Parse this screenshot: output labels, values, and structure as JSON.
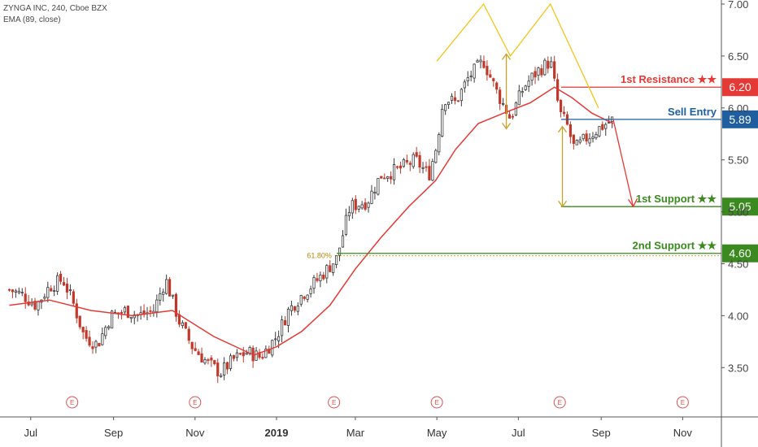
{
  "legend": {
    "symbol_line": "ZYNGA INC, 240, Cboe BZX",
    "indicator_line": "EMA (89, close)"
  },
  "colors": {
    "up_candle": "#3a3a3a",
    "down_candle": "#c0392b",
    "ema": "#e53935",
    "resistance": "#e53935",
    "entry": "#1f5fa0",
    "support": "#3a8a1f",
    "fib": "#b8860b",
    "pattern": "#f5c518",
    "arrow_gold": "#c9a227",
    "event": "#e05050"
  },
  "chart_data": {
    "type": "candlestick",
    "y_axis": {
      "ylim": [
        3.0,
        7.1
      ],
      "ticks": [
        "7.00",
        "6.50",
        "6.00",
        "5.50",
        "5.00",
        "4.50",
        "4.00",
        "3.50"
      ]
    },
    "x_axis": {
      "ticks": [
        "Jul",
        "Sep",
        "Nov",
        "2019",
        "Mar",
        "May",
        "Jul",
        "Sep",
        "Nov"
      ]
    },
    "close_path": [
      [
        "2018-06-15",
        4.25
      ],
      [
        "2018-06-25",
        4.2
      ],
      [
        "2018-07-05",
        4.1
      ],
      [
        "2018-07-15",
        4.28
      ],
      [
        "2018-07-25",
        4.35
      ],
      [
        "2018-08-01",
        4.15
      ],
      [
        "2018-08-10",
        3.8
      ],
      [
        "2018-08-20",
        3.72
      ],
      [
        "2018-08-30",
        4.0
      ],
      [
        "2018-09-10",
        4.05
      ],
      [
        "2018-09-20",
        4.0
      ],
      [
        "2018-10-01",
        4.05
      ],
      [
        "2018-10-10",
        4.35
      ],
      [
        "2018-10-20",
        3.95
      ],
      [
        "2018-10-30",
        3.7
      ],
      [
        "2018-11-10",
        3.55
      ],
      [
        "2018-11-20",
        3.45
      ],
      [
        "2018-11-30",
        3.58
      ],
      [
        "2018-12-10",
        3.65
      ],
      [
        "2018-12-20",
        3.6
      ],
      [
        "2019-01-01",
        3.8
      ],
      [
        "2019-01-10",
        4.05
      ],
      [
        "2019-01-20",
        4.2
      ],
      [
        "2019-02-01",
        4.35
      ],
      [
        "2019-02-15",
        4.55
      ],
      [
        "2019-02-25",
        5.05
      ],
      [
        "2019-03-10",
        5.1
      ],
      [
        "2019-03-20",
        5.35
      ],
      [
        "2019-04-01",
        5.4
      ],
      [
        "2019-04-15",
        5.5
      ],
      [
        "2019-04-25",
        5.35
      ],
      [
        "2019-05-01",
        5.65
      ],
      [
        "2019-05-06",
        6.1
      ],
      [
        "2019-05-15",
        6.05
      ],
      [
        "2019-05-25",
        6.3
      ],
      [
        "2019-06-05",
        6.45
      ],
      [
        "2019-06-15",
        6.15
      ],
      [
        "2019-06-25",
        5.9
      ],
      [
        "2019-07-05",
        6.2
      ],
      [
        "2019-07-15",
        6.35
      ],
      [
        "2019-07-25",
        6.45
      ],
      [
        "2019-08-01",
        5.95
      ],
      [
        "2019-08-06",
        5.85
      ],
      [
        "2019-08-12",
        5.6
      ],
      [
        "2019-08-20",
        5.7
      ],
      [
        "2019-08-30",
        5.8
      ],
      [
        "2019-09-10",
        5.89
      ]
    ],
    "ema_path": [
      [
        "2018-06-15",
        4.1
      ],
      [
        "2018-07-15",
        4.15
      ],
      [
        "2018-08-15",
        4.05
      ],
      [
        "2018-09-15",
        4.0
      ],
      [
        "2018-10-15",
        4.05
      ],
      [
        "2018-11-15",
        3.8
      ],
      [
        "2018-12-15",
        3.62
      ],
      [
        "2019-01-01",
        3.7
      ],
      [
        "2019-01-20",
        3.85
      ],
      [
        "2019-02-10",
        4.1
      ],
      [
        "2019-03-01",
        4.45
      ],
      [
        "2019-03-20",
        4.75
      ],
      [
        "2019-04-10",
        5.05
      ],
      [
        "2019-04-30",
        5.3
      ],
      [
        "2019-05-15",
        5.6
      ],
      [
        "2019-06-01",
        5.85
      ],
      [
        "2019-06-20",
        5.95
      ],
      [
        "2019-07-10",
        6.05
      ],
      [
        "2019-07-28",
        6.2
      ],
      [
        "2019-08-10",
        6.1
      ],
      [
        "2019-08-25",
        5.95
      ],
      [
        "2019-09-10",
        5.85
      ]
    ],
    "levels": [
      {
        "name": "1st Resistance",
        "stars": "★★",
        "value": 6.2,
        "badge": "6.20",
        "role": "resistance",
        "from": "2019-08-02"
      },
      {
        "name": "Sell Entry",
        "stars": "",
        "value": 5.89,
        "badge": "5.89",
        "role": "entry",
        "from": "2019-08-02"
      },
      {
        "name": "1st Support",
        "stars": "★★",
        "value": 5.05,
        "badge": "5.05",
        "role": "support",
        "from": "2019-08-02"
      },
      {
        "name": "2nd Support",
        "stars": "★★",
        "value": 4.6,
        "badge": "4.60",
        "role": "support",
        "from": "2019-02-15"
      }
    ],
    "fib": {
      "label": "61.80%",
      "value": 4.6,
      "from": "2019-02-15"
    },
    "pattern_line": [
      [
        "2019-05-01",
        6.45
      ],
      [
        "2019-06-05",
        7.0
      ],
      [
        "2019-06-25",
        6.5
      ],
      [
        "2019-07-25",
        7.0
      ],
      [
        "2019-08-30",
        6.0
      ]
    ],
    "projection_arrow": {
      "from": [
        "2019-09-10",
        5.89
      ],
      "to": [
        "2019-09-25",
        5.05
      ]
    },
    "measure_arrows": [
      {
        "x": "2019-06-22",
        "top": 6.52,
        "bottom": 5.8
      },
      {
        "x": "2019-08-03",
        "top": 5.82,
        "bottom": 5.05
      }
    ],
    "events": [
      {
        "date": "2018-08-01",
        "label": "E"
      },
      {
        "date": "2018-11-01",
        "label": "E"
      },
      {
        "date": "2019-02-13",
        "label": "E"
      },
      {
        "date": "2019-05-01",
        "label": "E"
      },
      {
        "date": "2019-08-01",
        "label": "E"
      },
      {
        "date": "2019-11-01",
        "label": "E"
      }
    ],
    "grid": false
  }
}
